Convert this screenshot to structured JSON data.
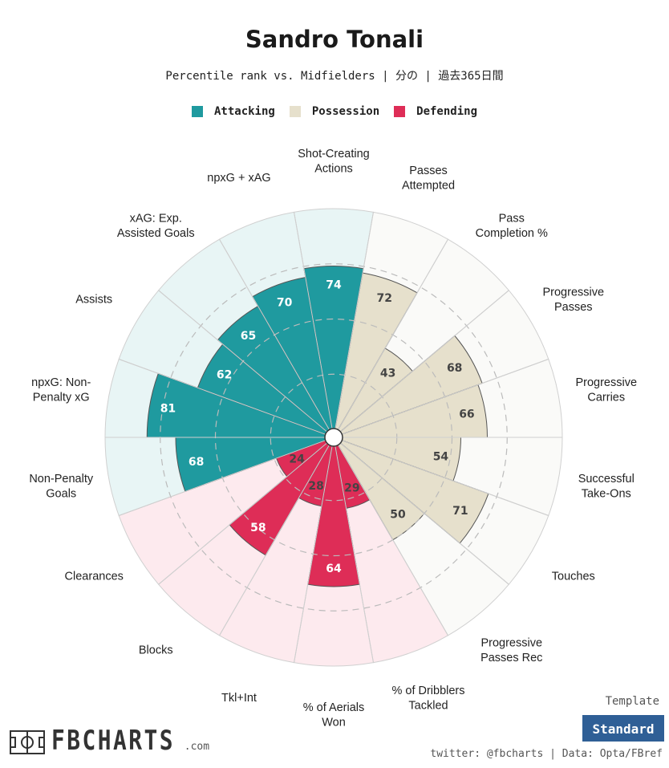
{
  "header": {
    "title": "Sandro Tonali",
    "subtitle": "Percentile rank vs. Midfielders | 分の | 過去365日間"
  },
  "legend": [
    {
      "label": "Attacking",
      "color": "#1f9a9f"
    },
    {
      "label": "Possession",
      "color": "#e6e0cc"
    },
    {
      "label": "Defending",
      "color": "#de2d57"
    }
  ],
  "chart_data": {
    "type": "radial-bar",
    "title": "Sandro Tonali",
    "scale": [
      0,
      100
    ],
    "reference_rings": [
      25,
      50,
      75
    ],
    "categories": [
      {
        "label": "Shot-Creating\nActions",
        "value": 74,
        "group": "Attacking"
      },
      {
        "label": "Passes\nAttempted",
        "value": 72,
        "group": "Possession"
      },
      {
        "label": "Pass\nCompletion %",
        "value": 43,
        "group": "Possession"
      },
      {
        "label": "Progressive\nPasses",
        "value": 68,
        "group": "Possession"
      },
      {
        "label": "Progressive\nCarries",
        "value": 66,
        "group": "Possession"
      },
      {
        "label": "Successful\nTake-Ons",
        "value": 54,
        "group": "Possession"
      },
      {
        "label": "Touches",
        "value": 71,
        "group": "Possession"
      },
      {
        "label": "Progressive\nPasses Rec",
        "value": 50,
        "group": "Possession"
      },
      {
        "label": "% of Dribblers\nTackled",
        "value": 29,
        "group": "Defending"
      },
      {
        "label": "% of Aerials\nWon",
        "value": 64,
        "group": "Defending"
      },
      {
        "label": "Tkl+Int",
        "value": 28,
        "group": "Defending"
      },
      {
        "label": "Blocks",
        "value": 58,
        "group": "Defending"
      },
      {
        "label": "Clearances",
        "value": 24,
        "group": "Defending"
      },
      {
        "label": "Non-Penalty\nGoals",
        "value": 68,
        "group": "Attacking"
      },
      {
        "label": "npxG: Non-\nPenalty xG",
        "value": 81,
        "group": "Attacking"
      },
      {
        "label": "Assists",
        "value": 62,
        "group": "Attacking"
      },
      {
        "label": "xAG: Exp.\nAssisted Goals",
        "value": 65,
        "group": "Attacking"
      },
      {
        "label": "npxG + xAG",
        "value": 70,
        "group": "Attacking"
      }
    ],
    "group_colors": {
      "Attacking": {
        "bar": "#1f9a9f",
        "bg": "#e8f5f5"
      },
      "Possession": {
        "bar": "#e6e0cc",
        "bg": "#fafaf8"
      },
      "Defending": {
        "bar": "#de2d57",
        "bg": "#fdeaee"
      }
    }
  },
  "footer": {
    "template_label": "Template",
    "template_button": "Standard",
    "credit": "twitter: @fbcharts | Data: Opta/FBref",
    "logo_text": "FBCHARTS",
    "logo_suffix": ".com"
  }
}
